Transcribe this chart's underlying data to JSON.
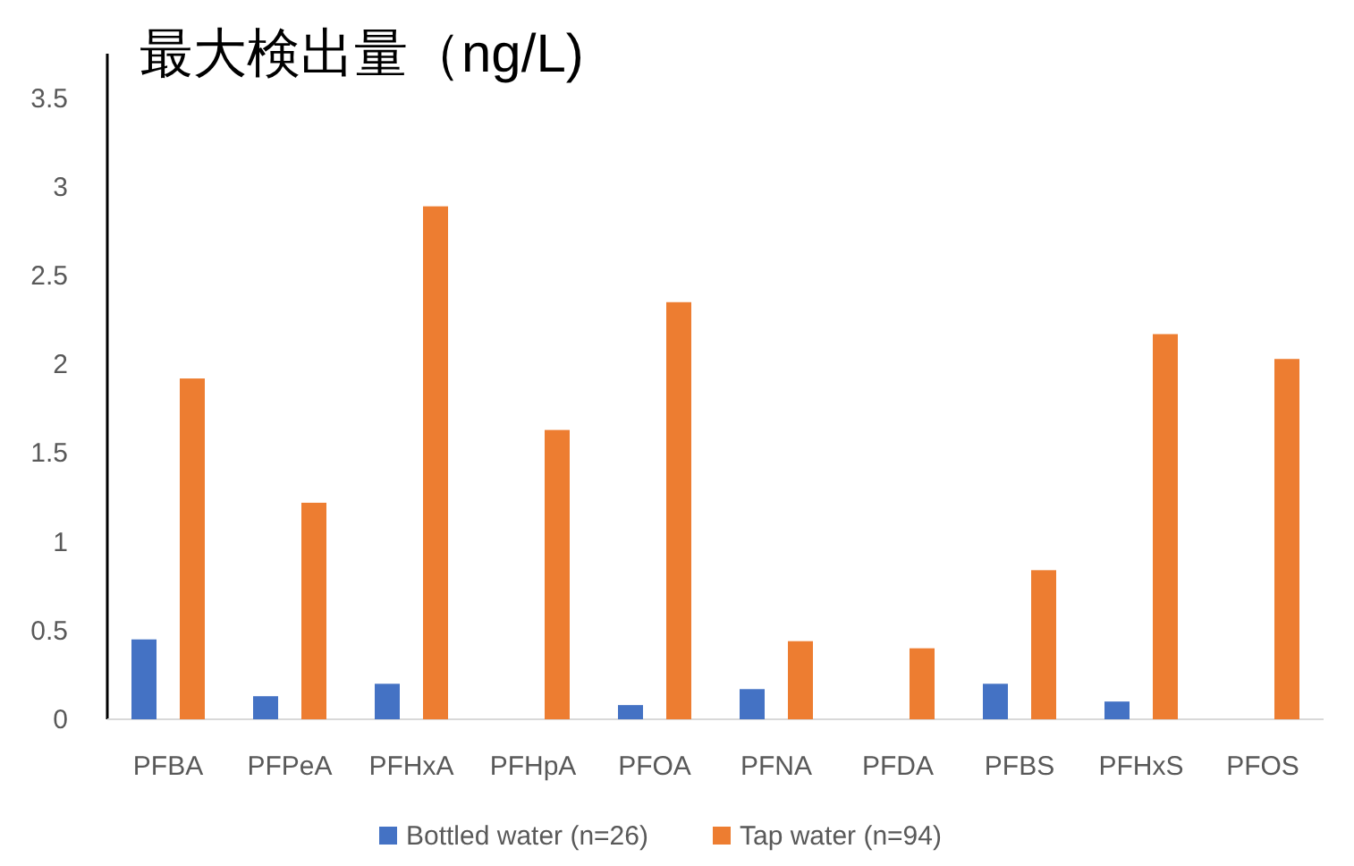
{
  "chart_data": {
    "type": "bar",
    "title": "最大検出量（ng/L)",
    "categories": [
      "PFBA",
      "PFPeA",
      "PFHxA",
      "PFHpA",
      "PFOA",
      "PFNA",
      "PFDA",
      "PFBS",
      "PFHxS",
      "PFOS"
    ],
    "series": [
      {
        "name": "Bottled water (n=26)",
        "color": "#4472c4",
        "values": [
          0.45,
          0.13,
          0.2,
          0,
          0.08,
          0.17,
          0,
          0.2,
          0.1,
          0
        ]
      },
      {
        "name": "Tap water (n=94)",
        "color": "#ed7d31",
        "values": [
          1.92,
          1.22,
          2.89,
          1.63,
          2.35,
          0.44,
          0.4,
          0.84,
          2.17,
          2.03
        ]
      }
    ],
    "ylim": [
      0,
      3.75
    ],
    "yticks": [
      0,
      0.5,
      1,
      1.5,
      2,
      2.5,
      3,
      3.5
    ],
    "grid": false,
    "legend": "bottom"
  }
}
